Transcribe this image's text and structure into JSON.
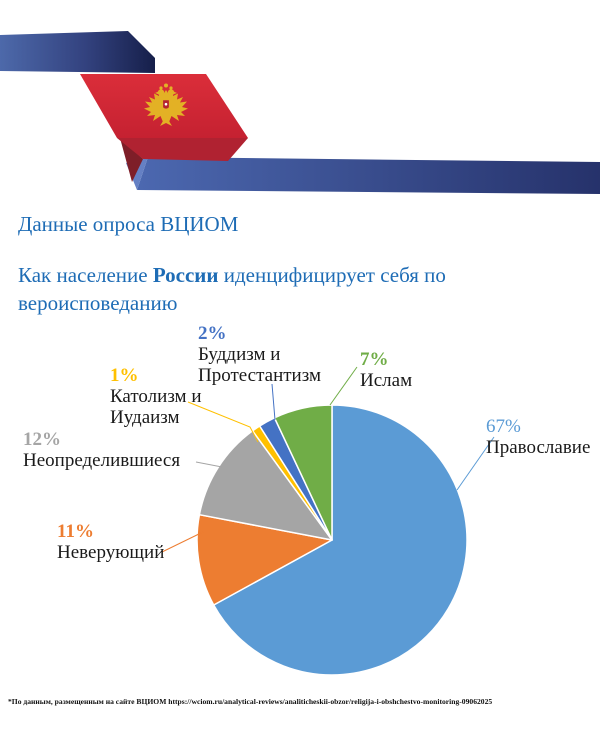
{
  "header": {
    "decoration": "russian-flag-ribbon-with-coat-of-arms",
    "colors": {
      "ribbon_blue_left": "#4D69AA",
      "ribbon_blue_dark": "#161F4A",
      "ribbon_blue_bottom_left": "#4C68B0",
      "ribbon_blue_bottom_right": "#26326B",
      "banner_red": "#D32A36",
      "banner_red_fold": "#B02231",
      "banner_maroon": "#7E1E28",
      "eagle_gold": "#E3B125"
    }
  },
  "title": "Данные опроса ВЦИОМ",
  "title_color": "#1E6CB5",
  "subtitle": {
    "prefix": "Как население ",
    "bold": "России",
    "suffix": " иденцифицирует себя по",
    "line2": "вероисповеданию"
  },
  "chart_data": {
    "type": "pie",
    "title": "Как население России иденцифицирует себя по вероисповеданию",
    "start_angle_deg": 0,
    "direction": "clockwise",
    "legend_position": "callout-labels",
    "segments": [
      {
        "name": "Православие",
        "pct": 67,
        "pct_label": "67%",
        "color": "#5B9BD5"
      },
      {
        "name": "Неверующий",
        "pct": 11,
        "pct_label": "11%",
        "color": "#ED7D31"
      },
      {
        "name": "Неопределившиеся",
        "pct": 12,
        "pct_label": "12%",
        "color": "#A5A5A5"
      },
      {
        "name": "Католизм и Иудаизм",
        "pct": 1,
        "pct_label": "1%",
        "color": "#FFC000"
      },
      {
        "name": "Буддизм и Протестантизм",
        "pct": 2,
        "pct_label": "2%",
        "color": "#4472C4"
      },
      {
        "name": "Ислам",
        "pct": 7,
        "pct_label": "7%",
        "color": "#70AD47"
      }
    ]
  },
  "footer": {
    "source_note": "*По данным, размещенным на сайте ВЦИОМ https://wciom.ru/analytical-reviews/analiticheskii-obzor/religija-i-obshchestvo-monitoring-09062025"
  }
}
